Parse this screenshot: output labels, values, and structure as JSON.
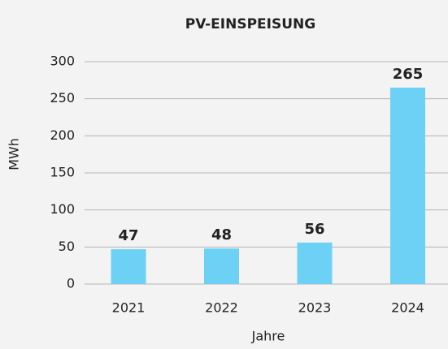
{
  "chart_data": {
    "type": "bar",
    "title": "PV-EINSPEISUNG",
    "x_label": "Jahre",
    "y_label": "MWh",
    "categories": [
      "2021",
      "2022",
      "2023",
      "2024"
    ],
    "values": [
      47,
      48,
      56,
      265
    ],
    "color": "#6dd0f5",
    "ylim": [
      0,
      300
    ],
    "yticks": [
      0,
      50,
      100,
      150,
      200,
      250,
      300
    ],
    "grid": true
  }
}
